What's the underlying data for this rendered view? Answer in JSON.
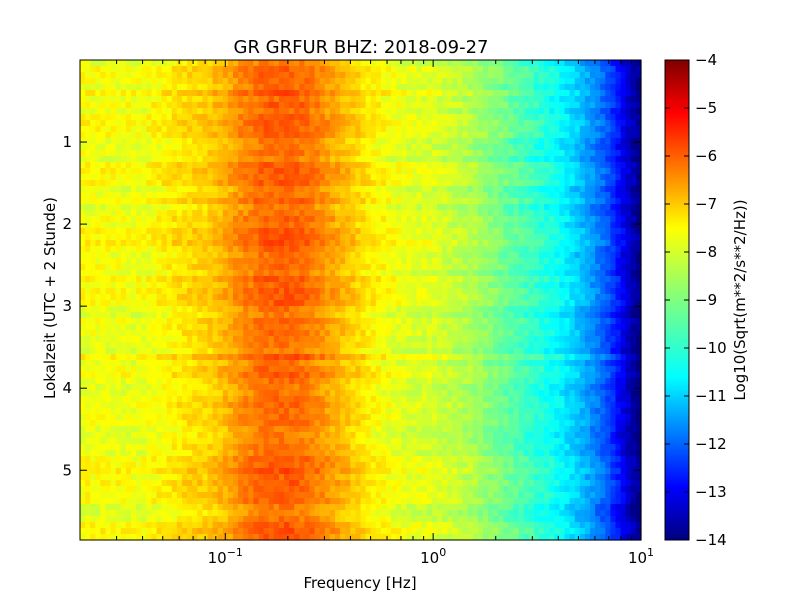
{
  "chart_data": {
    "type": "heatmap",
    "title": "GR GRFUR BHZ: 2018-09-27",
    "xlabel": "Frequency [Hz]",
    "ylabel": "Lokalzeit (UTC + 2 Stunde)",
    "x_scale": "log",
    "xlim": [
      0.02,
      10
    ],
    "ylim": [
      0,
      5.85
    ],
    "y_inverted": true,
    "x_ticks": [
      {
        "value": 0.1,
        "base": "10",
        "exp": "−1"
      },
      {
        "value": 1,
        "base": "10",
        "exp": "0"
      },
      {
        "value": 10,
        "base": "10",
        "exp": "1"
      }
    ],
    "y_ticks": [
      {
        "value": 1,
        "label": "1"
      },
      {
        "value": 2,
        "label": "2"
      },
      {
        "value": 3,
        "label": "3"
      },
      {
        "value": 4,
        "label": "4"
      },
      {
        "value": 5,
        "label": "5"
      }
    ],
    "colorbar": {
      "label": "Log10(Sqrt(m**2/s**2/Hz))",
      "colormap": "jet",
      "min": -14,
      "max": -4,
      "ticks": [
        "−4",
        "−5",
        "−6",
        "−7",
        "−8",
        "−9",
        "−10",
        "−11",
        "−12",
        "−13",
        "−14"
      ],
      "tick_values": [
        -4,
        -5,
        -6,
        -7,
        -8,
        -9,
        -10,
        -11,
        -12,
        -13,
        -14
      ]
    },
    "spectrum_profile": {
      "frequency_hz": [
        0.02,
        0.04,
        0.06,
        0.08,
        0.1,
        0.12,
        0.15,
        0.2,
        0.25,
        0.3,
        0.4,
        0.5,
        0.7,
        1.0,
        1.5,
        2.0,
        3.0,
        4.0,
        5.0,
        6.0,
        7.0,
        8.0,
        9.0,
        10.0
      ],
      "log10_amplitude": [
        -7.8,
        -7.9,
        -7.5,
        -7.3,
        -7.0,
        -6.6,
        -6.3,
        -6.2,
        -6.4,
        -6.7,
        -7.2,
        -7.6,
        -8.0,
        -8.1,
        -8.5,
        -9.0,
        -9.7,
        -10.2,
        -10.8,
        -11.4,
        -12.0,
        -12.8,
        -13.5,
        -14.0
      ]
    },
    "grid": false
  }
}
